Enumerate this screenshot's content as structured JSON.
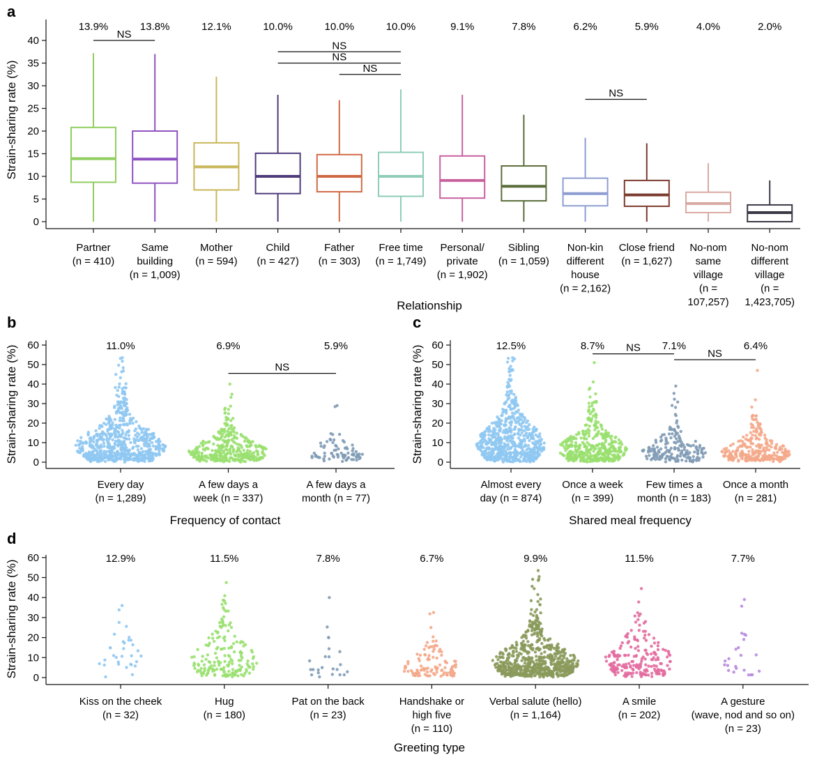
{
  "chart_data": [
    {
      "type": "box",
      "panel": "a",
      "xlabel": "Relationship",
      "ylabel": "Strain-sharing rate (%)",
      "ylim": [
        0,
        42
      ],
      "yticks": [
        "0",
        "5",
        "10",
        "15",
        "20",
        "25",
        "30",
        "35",
        "40"
      ],
      "categories": [
        {
          "lines": [
            "Partner",
            "(n = 410)"
          ],
          "pct": "13.9%",
          "color": "#8fce5f",
          "min": 0,
          "q1": 8.7,
          "median": 13.9,
          "q3": 20.8,
          "max": 37.2
        },
        {
          "lines": [
            "Same",
            "building",
            "(n = 1,009)"
          ],
          "pct": "13.8%",
          "color": "#9052c2",
          "min": 0,
          "q1": 8.5,
          "median": 13.8,
          "q3": 20.0,
          "max": 37.0
        },
        {
          "lines": [
            "Mother",
            "(n = 594)"
          ],
          "pct": "12.1%",
          "color": "#c9b75a",
          "min": 0,
          "q1": 7.0,
          "median": 12.1,
          "q3": 17.4,
          "max": 32.0
        },
        {
          "lines": [
            "Child",
            "(n = 427)"
          ],
          "pct": "10.0%",
          "color": "#4f3a7c",
          "min": 0,
          "q1": 6.2,
          "median": 10.0,
          "q3": 15.1,
          "max": 28.0
        },
        {
          "lines": [
            "Father",
            "(n = 303)"
          ],
          "pct": "10.0%",
          "color": "#d06a45",
          "min": 0,
          "q1": 6.6,
          "median": 10.0,
          "q3": 14.8,
          "max": 26.8
        },
        {
          "lines": [
            "Free time",
            "(n = 1,749)"
          ],
          "pct": "10.0%",
          "color": "#8fcdb8",
          "min": 0,
          "q1": 5.6,
          "median": 10.0,
          "q3": 15.3,
          "max": 29.2
        },
        {
          "lines": [
            "Personal/",
            "private",
            "(n = 1,902)"
          ],
          "pct": "9.1%",
          "color": "#c8609e",
          "min": 0,
          "q1": 5.2,
          "median": 9.1,
          "q3": 14.5,
          "max": 28.0
        },
        {
          "lines": [
            "Sibling",
            "(n = 1,059)"
          ],
          "pct": "7.8%",
          "color": "#5a6d3a",
          "min": 0,
          "q1": 4.6,
          "median": 7.8,
          "q3": 12.3,
          "max": 23.6
        },
        {
          "lines": [
            "Non-kin",
            "different",
            "house",
            "(n = 2,162)"
          ],
          "pct": "6.2%",
          "color": "#8e9dd1",
          "min": 0,
          "q1": 3.5,
          "median": 6.2,
          "q3": 9.6,
          "max": 18.5
        },
        {
          "lines": [
            "Close friend",
            "(n = 1,627)"
          ],
          "pct": "5.9%",
          "color": "#7c3a2e",
          "min": 0,
          "q1": 3.4,
          "median": 5.9,
          "q3": 9.1,
          "max": 17.3
        },
        {
          "lines": [
            "No-nom",
            "same",
            "village",
            "(n =",
            "107,257)"
          ],
          "pct": "4.0%",
          "color": "#d9aaa3",
          "min": 0,
          "q1": 2.0,
          "median": 4.0,
          "q3": 6.5,
          "max": 12.9
        },
        {
          "lines": [
            "No-nom",
            "different",
            "village",
            "(n =",
            "1,423,705)"
          ],
          "pct": "2.0%",
          "color": "#3b3845",
          "min": 0,
          "q1": 0.0,
          "median": 2.0,
          "q3": 3.7,
          "max": 9.1
        }
      ],
      "ns": [
        {
          "from": 0,
          "to": 1,
          "level": 40.0,
          "label": "NS"
        },
        {
          "from": 3,
          "to": 5,
          "level": 37.5,
          "label": "NS"
        },
        {
          "from": 3,
          "to": 5,
          "level": 35.0,
          "label": "NS"
        },
        {
          "from": 4,
          "to": 5,
          "level": 32.5,
          "label": "NS"
        },
        {
          "from": 8,
          "to": 9,
          "level": 27.0,
          "label": "NS"
        }
      ]
    },
    {
      "type": "beeswarm",
      "panel": "b",
      "xlabel": "Frequency of contact",
      "ylabel": "Strain-sharing rate (%)",
      "ylim": [
        0,
        62
      ],
      "yticks": [
        "0",
        "10",
        "20",
        "30",
        "40",
        "50",
        "60"
      ],
      "categories": [
        {
          "lines": [
            "Every day",
            "(n = 1,289)"
          ],
          "pct": "11.0%",
          "color": "#8fc8f2",
          "n": 1289,
          "median": 11.0,
          "max": 53.5
        },
        {
          "lines": [
            "A few days a",
            "week (n = 337)"
          ],
          "pct": "6.9%",
          "color": "#99e06f",
          "n": 337,
          "median": 6.9,
          "max": 40.0
        },
        {
          "lines": [
            "A few days a",
            "month (n = 77)"
          ],
          "pct": "5.9%",
          "color": "#7f9bb5",
          "n": 77,
          "median": 5.9,
          "max": 29.0
        }
      ],
      "ns": [
        {
          "from": 1,
          "to": 2,
          "level": 45.5,
          "label": "NS"
        }
      ]
    },
    {
      "type": "beeswarm",
      "panel": "c",
      "xlabel": "Shared meal frequency",
      "ylabel": "Strain-sharing rate (%)",
      "ylim": [
        0,
        62
      ],
      "yticks": [
        "0",
        "10",
        "20",
        "30",
        "40",
        "50",
        "60"
      ],
      "categories": [
        {
          "lines": [
            "Almost every",
            "day (n = 874)"
          ],
          "pct": "12.5%",
          "color": "#8fc8f2",
          "n": 874,
          "median": 12.5,
          "max": 53.5
        },
        {
          "lines": [
            "Once a week",
            "(n = 399)"
          ],
          "pct": "8.7%",
          "color": "#99e06f",
          "n": 399,
          "median": 8.7,
          "max": 51.0
        },
        {
          "lines": [
            "Few times a",
            "month (n = 183)"
          ],
          "pct": "7.1%",
          "color": "#7f9bb5",
          "n": 183,
          "median": 7.1,
          "max": 39.0
        },
        {
          "lines": [
            "Once a month",
            "(n = 281)"
          ],
          "pct": "6.4%",
          "color": "#f4a98a",
          "n": 281,
          "median": 6.4,
          "max": 47.0
        }
      ],
      "ns": [
        {
          "from": 1,
          "to": 2,
          "level": 55.5,
          "label": "NS"
        },
        {
          "from": 2,
          "to": 3,
          "level": 52.5,
          "label": "NS"
        }
      ]
    },
    {
      "type": "beeswarm",
      "panel": "d",
      "xlabel": "Greeting type",
      "ylabel": "Strain-sharing rate (%)",
      "ylim": [
        0,
        62
      ],
      "yticks": [
        "0",
        "10",
        "20",
        "30",
        "40",
        "50",
        "60"
      ],
      "categories": [
        {
          "lines": [
            "Kiss on the cheek",
            "(n = 32)"
          ],
          "pct": "12.9%",
          "color": "#8fc8f2",
          "n": 32,
          "median": 12.9,
          "max": 36.0
        },
        {
          "lines": [
            "Hug",
            "(n = 180)"
          ],
          "pct": "11.5%",
          "color": "#99e06f",
          "n": 180,
          "median": 11.5,
          "max": 47.5
        },
        {
          "lines": [
            "Pat on the back",
            "(n = 23)"
          ],
          "pct": "7.8%",
          "color": "#7f9bb5",
          "n": 23,
          "median": 7.8,
          "max": 40.0
        },
        {
          "lines": [
            "Handshake or",
            "high five",
            "(n = 110)"
          ],
          "pct": "6.7%",
          "color": "#f4a98a",
          "n": 110,
          "median": 6.7,
          "max": 32.5
        },
        {
          "lines": [
            "Verbal salute (hello)",
            "(n = 1,164)"
          ],
          "pct": "9.9%",
          "color": "#8a9a5b",
          "n": 1164,
          "median": 9.9,
          "max": 53.5
        },
        {
          "lines": [
            "A smile",
            "(n = 202)"
          ],
          "pct": "11.5%",
          "color": "#e36ba0",
          "n": 202,
          "median": 11.5,
          "max": 44.5
        },
        {
          "lines": [
            "A gesture",
            "(wave, nod and so on)",
            "(n = 23)"
          ],
          "pct": "7.7%",
          "color": "#b88ae0",
          "n": 23,
          "median": 7.7,
          "max": 39.0
        }
      ],
      "ns": []
    }
  ]
}
